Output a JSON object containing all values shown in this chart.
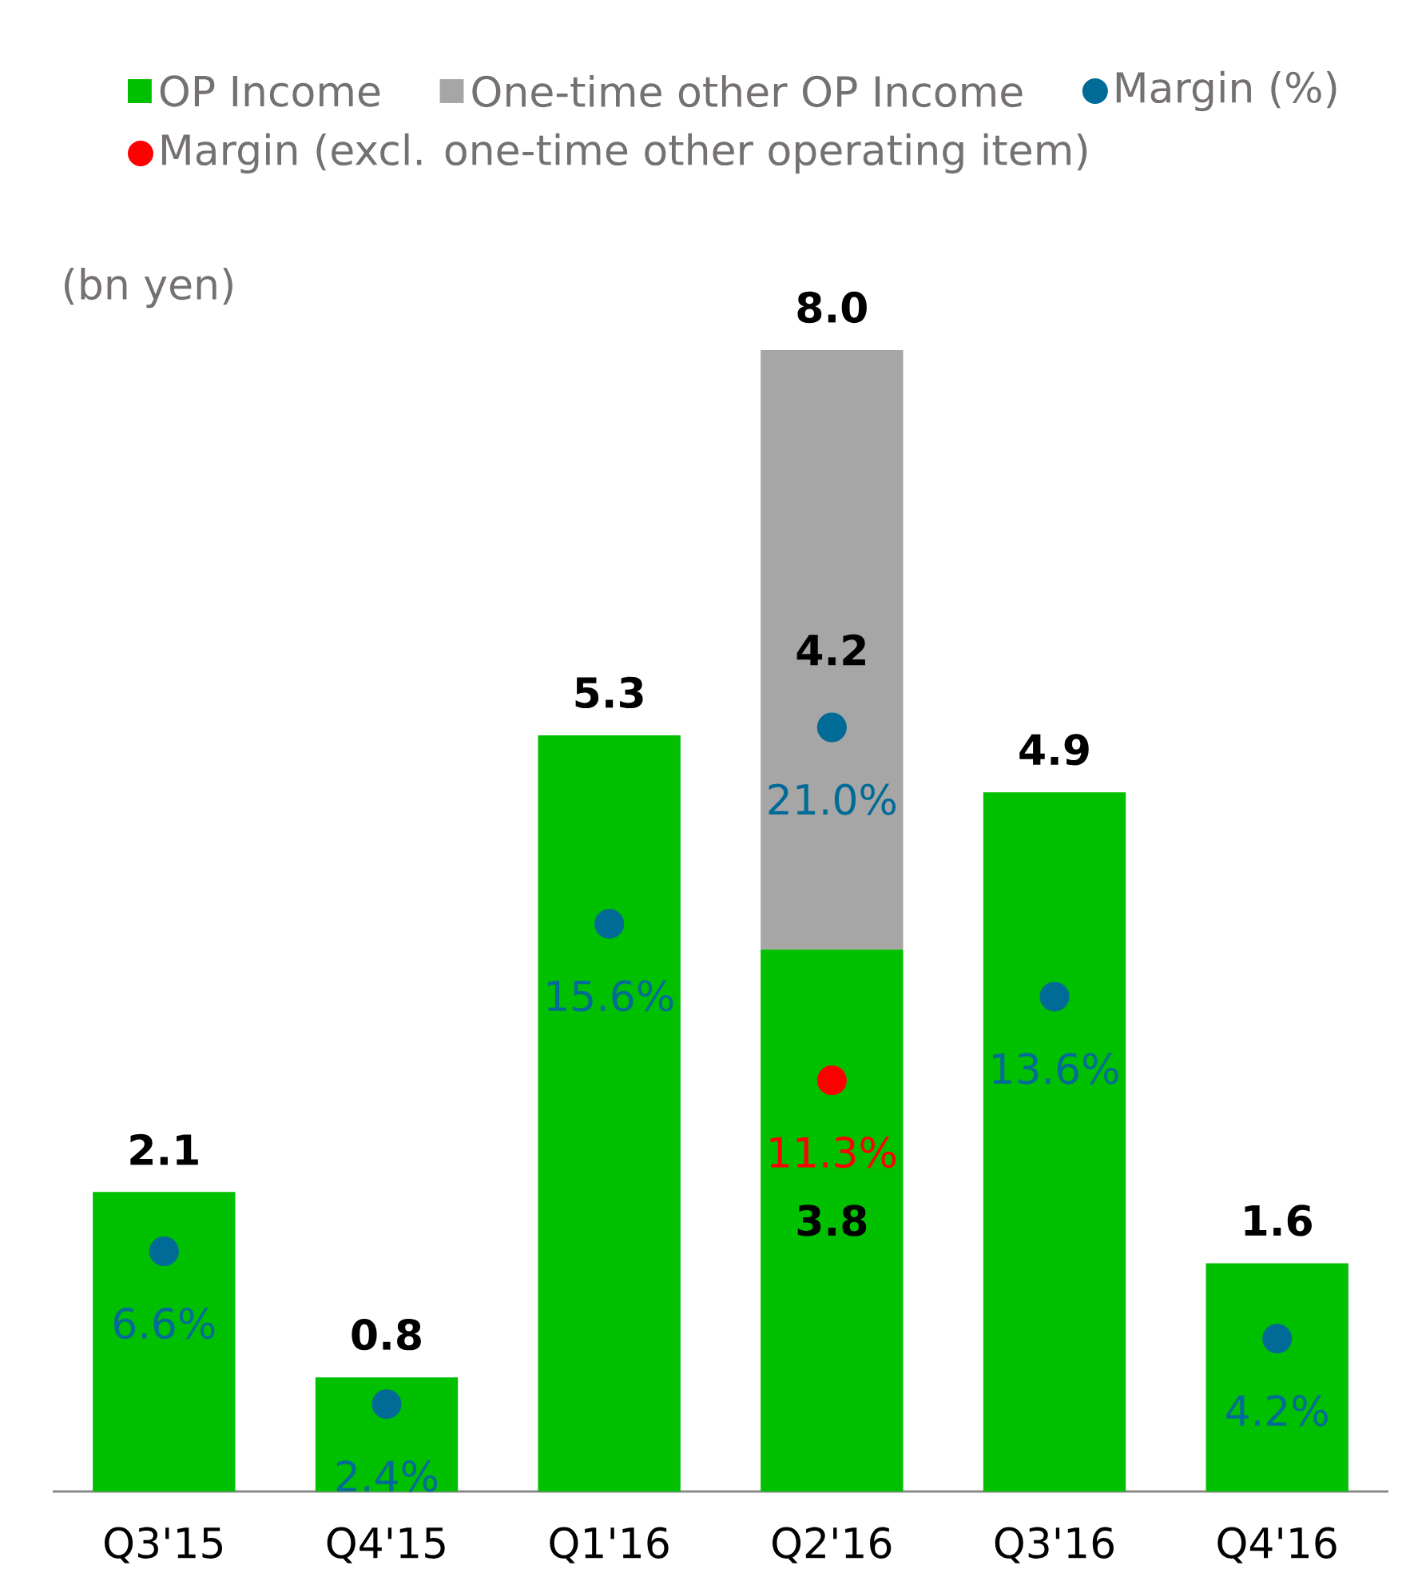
{
  "chart_data": {
    "type": "bar",
    "stacked": true,
    "ylabel": "(bn yen)",
    "categories": [
      "Q3'15",
      "Q4'15",
      "Q1'16",
      "Q2'16",
      "Q3'16",
      "Q4'16"
    ],
    "series": [
      {
        "name": "OP Income",
        "color": "#00c000",
        "values": [
          2.1,
          0.8,
          5.3,
          3.8,
          4.9,
          1.6
        ],
        "value_labels": [
          null,
          null,
          null,
          "3.8",
          null,
          null
        ]
      },
      {
        "name": "One-time other OP Income",
        "color": "#a6a6a6",
        "values": [
          null,
          null,
          null,
          4.2,
          null,
          null
        ],
        "value_labels": [
          null,
          null,
          null,
          "4.2",
          null,
          null
        ]
      },
      {
        "name": "Margin (%)",
        "type": "scatter",
        "axis": "y2",
        "color": "#006b96",
        "values": [
          6.6,
          2.4,
          15.6,
          21.0,
          13.6,
          4.2
        ],
        "value_labels": [
          "6.6%",
          "2.4%",
          "15.6%",
          "21.0%",
          "13.6%",
          "4.2%"
        ]
      },
      {
        "name": "Margin (excl. one-time other operating item)",
        "type": "scatter",
        "axis": "y2",
        "color": "#ff0000",
        "values": [
          null,
          null,
          null,
          11.3,
          null,
          null
        ],
        "value_labels": [
          null,
          null,
          null,
          "11.3%",
          null,
          null
        ]
      }
    ],
    "totals": [
      "2.1",
      "0.8",
      "5.3",
      "8.0",
      "4.9",
      "1.6"
    ],
    "tick_labels": "x",
    "legend": "top",
    "marker": "circle"
  }
}
